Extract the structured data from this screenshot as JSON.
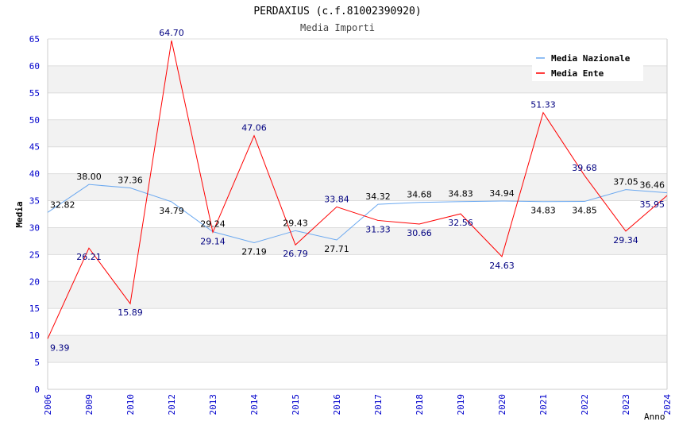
{
  "chart_data": {
    "type": "line",
    "title": "PERDAXIUS (c.f.81002390920)",
    "subtitle": "Media Importi",
    "xlabel": "Anno",
    "ylabel": "Media",
    "ylim": [
      0,
      65
    ],
    "yticks": [
      0,
      5,
      10,
      15,
      20,
      25,
      30,
      35,
      40,
      45,
      50,
      55,
      60,
      65
    ],
    "categories": [
      "2006",
      "2009",
      "2010",
      "2012",
      "2013",
      "2014",
      "2015",
      "2016",
      "2017",
      "2018",
      "2019",
      "2020",
      "2021",
      "2022",
      "2023",
      "2024"
    ],
    "legend_position": "top-right",
    "series": [
      {
        "name": "Media Nazionale",
        "color": "#6aa8f0",
        "label_color": "#000000",
        "values": [
          32.82,
          38.0,
          37.36,
          34.79,
          29.24,
          27.19,
          29.43,
          27.71,
          34.32,
          34.68,
          34.83,
          34.94,
          34.83,
          34.85,
          37.05,
          36.46
        ]
      },
      {
        "name": "Media Ente",
        "color": "#ff0000",
        "label_color": "#000080",
        "values": [
          9.39,
          26.21,
          15.89,
          64.7,
          29.14,
          47.06,
          26.79,
          33.84,
          31.33,
          30.66,
          32.56,
          24.63,
          51.33,
          39.68,
          29.34,
          35.95
        ]
      }
    ]
  }
}
